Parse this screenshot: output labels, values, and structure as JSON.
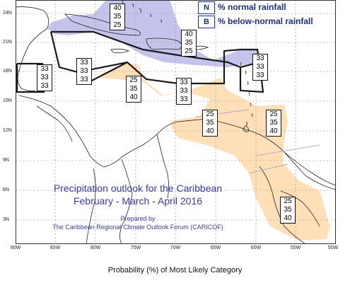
{
  "legend": {
    "n_code": "N",
    "n_label": "% normal rainfall",
    "b_code": "B",
    "b_label": "% below-normal rainfall"
  },
  "map_text": {
    "title_line1": "Precipitation outlook for the Caribbean",
    "title_line2": "February - March - April 2016",
    "prepared_by": "Prepared by",
    "organization": "The Caribbean Regional Climate Outlook Forum (CARICOF)"
  },
  "footer_title": "Probability (%) of Most Likely Category",
  "y_ticks": [
    "24N",
    "21N",
    "18N",
    "15N",
    "12N",
    "9N",
    "6N",
    "3N"
  ],
  "x_ticks": [
    "90W",
    "85W",
    "80W",
    "75W",
    "70W",
    "65W",
    "60W",
    "55W",
    "50W"
  ],
  "colors": {
    "below_normal": "#ffdcb0",
    "above_normal": "#b8b8e8",
    "boundary": "#1a1a1a",
    "title_blue": "#3a3aa8"
  },
  "probability_boxes": [
    {
      "id": "bahamas",
      "values": [
        "40",
        "35",
        "25"
      ]
    },
    {
      "id": "north-caribbean",
      "values": [
        "40",
        "35",
        "25"
      ]
    },
    {
      "id": "belize",
      "values": [
        "33",
        "33",
        "33"
      ]
    },
    {
      "id": "cayman",
      "values": [
        "33",
        "33",
        "33"
      ]
    },
    {
      "id": "jamaica-south",
      "values": [
        "25",
        "35",
        "40"
      ]
    },
    {
      "id": "hispaniola-south",
      "values": [
        "33",
        "33",
        "33"
      ]
    },
    {
      "id": "leewards",
      "values": [
        "33",
        "33",
        "33"
      ]
    },
    {
      "id": "central-caribbean",
      "values": [
        "25",
        "35",
        "40"
      ]
    },
    {
      "id": "windwards",
      "values": [
        "25",
        "35",
        "40"
      ]
    },
    {
      "id": "guianas",
      "values": [
        "25",
        "35",
        "40"
      ]
    }
  ]
}
